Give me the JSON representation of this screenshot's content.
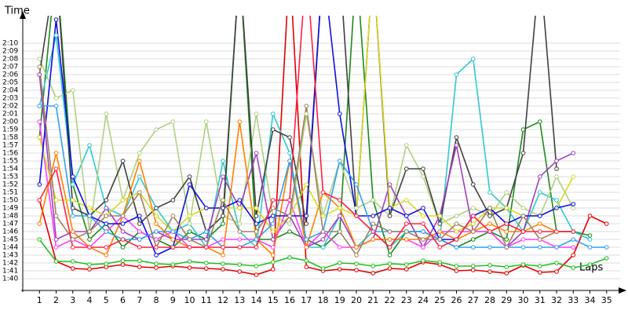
{
  "chart_data": {
    "type": "line",
    "ylabel": "Time",
    "xlabel": "Laps",
    "x": [
      1,
      2,
      3,
      4,
      5,
      6,
      7,
      8,
      9,
      10,
      11,
      12,
      13,
      14,
      15,
      16,
      17,
      18,
      19,
      20,
      21,
      22,
      23,
      24,
      25,
      26,
      27,
      28,
      29,
      30,
      31,
      32,
      33,
      34,
      35
    ],
    "xlim": [
      0,
      36
    ],
    "xticks": [
      1,
      2,
      3,
      4,
      5,
      6,
      7,
      8,
      9,
      10,
      11,
      12,
      13,
      14,
      15,
      16,
      17,
      18,
      19,
      20,
      21,
      22,
      23,
      24,
      25,
      26,
      27,
      28,
      29,
      30,
      31,
      32,
      33,
      34,
      35
    ],
    "ylim": [
      98.5,
      133.5
    ],
    "yticks": [
      {
        "value": 100,
        "label": "1:40"
      },
      {
        "value": 101,
        "label": "1:41"
      },
      {
        "value": 102,
        "label": "1:42"
      },
      {
        "value": 103,
        "label": "1:43"
      },
      {
        "value": 104,
        "label": "1:44"
      },
      {
        "value": 105,
        "label": "1:45"
      },
      {
        "value": 106,
        "label": "1:46"
      },
      {
        "value": 107,
        "label": "1:47"
      },
      {
        "value": 108,
        "label": "1:48"
      },
      {
        "value": 109,
        "label": "1:49"
      },
      {
        "value": 110,
        "label": "1:50"
      },
      {
        "value": 111,
        "label": "1:51"
      },
      {
        "value": 112,
        "label": "1:52"
      },
      {
        "value": 113,
        "label": "1:53"
      },
      {
        "value": 114,
        "label": "1:54"
      },
      {
        "value": 115,
        "label": "1:55"
      },
      {
        "value": 116,
        "label": "1:56"
      },
      {
        "value": 117,
        "label": "1:57"
      },
      {
        "value": 118,
        "label": "1:58"
      },
      {
        "value": 119,
        "label": "1:59"
      },
      {
        "value": 120,
        "label": "2:00"
      },
      {
        "value": 121,
        "label": "2:01"
      },
      {
        "value": 122,
        "label": "2:02"
      },
      {
        "value": 123,
        "label": "2:03"
      },
      {
        "value": 124,
        "label": "2:04"
      },
      {
        "value": 125,
        "label": "2:05"
      },
      {
        "value": 126,
        "label": "2:06"
      },
      {
        "value": 127,
        "label": "2:07"
      },
      {
        "value": 128,
        "label": "2:08"
      },
      {
        "value": 129,
        "label": "2:09"
      },
      {
        "value": 130,
        "label": "2:10"
      }
    ],
    "grid": true,
    "series": [
      {
        "color": "#e00000",
        "values": [
          110,
          102.2,
          101.3,
          101.2,
          101.5,
          101.8,
          101.5,
          101.4,
          101.6,
          101.4,
          101.3,
          101.2,
          100.9,
          100.5,
          101.2,
          140,
          101.5,
          101.0,
          101.2,
          101.1,
          100.7,
          101.3,
          101.2,
          102.1,
          101.8,
          101.0,
          101.1,
          100.9,
          100.7,
          101.7,
          100.8,
          100.9,
          103,
          108,
          107
        ]
      },
      {
        "color": "#20c020",
        "values": [
          105,
          102.2,
          102.2,
          101.8,
          101.9,
          102.3,
          102.3,
          101.9,
          101.8,
          102.2,
          102,
          101.9,
          101.8,
          101.6,
          102.1,
          102.7,
          102.3,
          101.3,
          102,
          101.9,
          101.6,
          101.9,
          101.8,
          102.3,
          102.1,
          101.6,
          101.6,
          101.7,
          101.5,
          101.8,
          101.6,
          102,
          101.4,
          101.8,
          102.6
        ]
      },
      {
        "color": "#1a8a1a",
        "values": [
          118,
          140,
          112,
          105,
          107,
          104,
          106,
          105,
          104,
          106,
          105,
          107,
          140,
          105,
          105,
          106,
          105,
          104,
          106,
          140,
          110,
          103,
          106,
          106,
          105,
          104,
          105,
          106,
          105,
          119,
          120,
          106,
          106,
          105.5,
          null
        ]
      },
      {
        "color": "#30c8d0",
        "values": [
          122,
          131,
          112,
          117,
          109,
          108,
          113,
          109,
          106,
          107,
          104,
          115,
          106,
          104,
          121,
          116,
          104,
          104,
          108,
          104,
          106,
          104,
          106,
          106,
          105,
          126,
          128,
          111,
          109,
          106,
          111,
          110,
          106,
          105,
          null
        ]
      },
      {
        "color": "#b0d080",
        "values": [
          128,
          123,
          124,
          106,
          121,
          110,
          116,
          119,
          120,
          107,
          120,
          108,
          107,
          121,
          108,
          107,
          121,
          108,
          115,
          109,
          110,
          108,
          117,
          113,
          107,
          108,
          109,
          108,
          111,
          109,
          108,
          113,
          109,
          null,
          null
        ]
      },
      {
        "color": "#404040",
        "values": [
          126,
          140,
          109,
          108,
          110,
          115,
          107,
          109,
          110,
          113,
          106,
          108,
          140,
          108,
          119,
          118,
          107,
          140,
          140,
          108,
          140,
          108,
          114,
          114,
          107,
          118,
          112,
          108,
          109,
          116,
          140,
          114,
          null,
          null,
          null
        ]
      },
      {
        "color": "#a040c0",
        "values": [
          126,
          105,
          106,
          106,
          109,
          106,
          105,
          106,
          105,
          105,
          105,
          113,
          109,
          116,
          105,
          108,
          104,
          105,
          108,
          104,
          105,
          112,
          108,
          104,
          108,
          117,
          106,
          106,
          104,
          106,
          113,
          115,
          116,
          null,
          null
        ]
      },
      {
        "color": "#ff40ff",
        "values": [
          120,
          104,
          105,
          104,
          106,
          108,
          106,
          105,
          106,
          104,
          104,
          105,
          105,
          105,
          104,
          110,
          104,
          106,
          104,
          104,
          105,
          105,
          105,
          104,
          106,
          106,
          106,
          106,
          104,
          105,
          105,
          104,
          104,
          null,
          null
        ]
      },
      {
        "color": "#ff8000",
        "values": [
          107,
          116,
          106,
          104,
          103,
          108,
          115,
          107,
          105,
          104,
          104,
          103,
          120,
          105,
          103,
          115,
          104,
          111,
          109,
          104,
          105,
          105,
          105,
          105,
          106,
          105,
          106,
          107,
          106,
          106,
          107,
          106,
          106,
          null,
          null
        ]
      },
      {
        "color": "#d8d820",
        "values": [
          118,
          110,
          110,
          109,
          108,
          110,
          111,
          108,
          106,
          108,
          109,
          109,
          109,
          109,
          106,
          108,
          112,
          108,
          109,
          108,
          140,
          109,
          110,
          108,
          108,
          106,
          107,
          109,
          109,
          108,
          108,
          109,
          113,
          null,
          null
        ]
      },
      {
        "color": "#1010e0",
        "values": [
          112,
          133,
          113,
          108,
          107,
          107,
          108,
          103,
          104,
          112,
          109,
          109,
          110,
          107,
          108,
          108,
          108,
          140,
          121,
          108,
          108,
          109,
          108,
          109,
          105,
          105,
          108,
          109,
          107,
          108,
          108,
          109,
          109.5,
          null,
          null
        ]
      },
      {
        "color": "#30a0f0",
        "values": [
          122,
          122,
          108,
          108,
          106,
          105,
          105,
          106,
          106,
          105,
          106,
          104,
          104,
          105,
          107,
          115,
          105,
          106,
          115,
          112,
          106,
          106,
          106,
          106,
          105,
          104,
          104,
          104,
          104,
          104,
          104,
          104,
          105,
          104,
          104
        ]
      },
      {
        "color": "#a08060",
        "values": [
          127,
          108,
          105,
          106,
          108,
          108,
          111,
          104,
          108,
          105,
          104,
          110,
          106,
          106,
          109,
          108,
          122,
          106,
          106,
          103,
          107,
          106,
          106,
          105,
          105,
          107,
          106,
          109,
          104,
          108,
          105,
          106,
          106,
          null,
          null
        ]
      },
      {
        "color": "#ff2040",
        "values": [
          110,
          114,
          104,
          104,
          104,
          105,
          104,
          104,
          104,
          104,
          104,
          104,
          104,
          104,
          110,
          110,
          140,
          111,
          110,
          108,
          106,
          104,
          107,
          107,
          104,
          105,
          108,
          106,
          107,
          106,
          106,
          106,
          106,
          null,
          null
        ]
      }
    ]
  }
}
